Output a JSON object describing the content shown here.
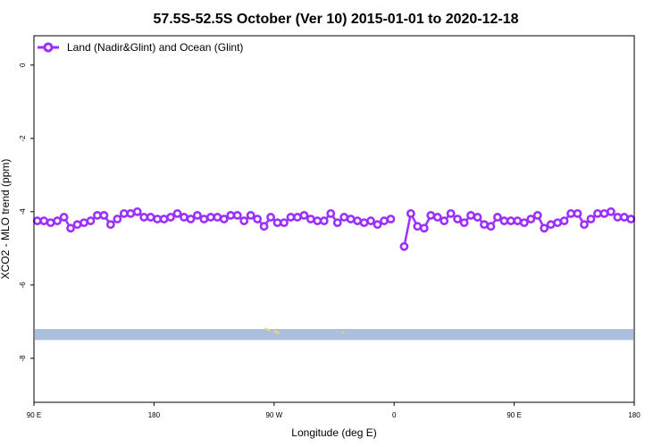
{
  "chart_data": {
    "type": "line",
    "title": "57.5S-52.5S October (Ver 10)   2015-01-01 to 2020-12-18",
    "xlabel": "Longitude (deg E)",
    "ylabel": "XCO2 - MLO trend (ppm)",
    "xlim": [
      90,
      450
    ],
    "ylim": [
      -9.2,
      0.8
    ],
    "x_ticks": [
      {
        "value": 90,
        "label": "90 E"
      },
      {
        "value": 180,
        "label": "180"
      },
      {
        "value": 270,
        "label": "90 W"
      },
      {
        "value": 360,
        "label": "0"
      },
      {
        "value": 450,
        "label": "90 E"
      },
      {
        "value": 540,
        "label": "180"
      }
    ],
    "y_ticks": [
      {
        "value": 0,
        "label": "0"
      },
      {
        "value": -2,
        "label": "-2"
      },
      {
        "value": -4,
        "label": "-4"
      },
      {
        "value": -6,
        "label": "-6"
      },
      {
        "value": -8,
        "label": "-8"
      }
    ],
    "x_axis_range_plotted": [
      90,
      540
    ],
    "grid": false,
    "legend_position": "top-left",
    "series": [
      {
        "name": "Land (Nadir&Glint) and Ocean (Glint)",
        "color": "#9b30ff",
        "segments": [
          {
            "x": [
              92.5,
              97.5,
              102.5,
              107.5,
              112.5,
              117.5,
              122.5,
              127.5,
              132.5,
              137.5,
              142.5,
              147.5,
              152.5,
              157.5,
              162.5,
              167.5,
              172.5,
              177.5,
              182.5,
              187.5,
              192.5,
              197.5,
              202.5,
              207.5,
              212.5,
              217.5,
              222.5,
              227.5,
              232.5,
              237.5,
              242.5,
              247.5,
              252.5,
              257.5,
              262.5,
              267.5,
              272.5,
              277.5,
              282.5,
              287.5,
              292.5,
              297.5,
              302.5,
              307.5,
              312.5,
              317.5,
              322.5,
              327.5,
              332.5,
              337.5,
              342.5,
              347.5,
              352.5,
              357.5
            ],
            "y": [
              -4.25,
              -4.25,
              -4.3,
              -4.25,
              -4.15,
              -4.45,
              -4.35,
              -4.3,
              -4.25,
              -4.1,
              -4.1,
              -4.35,
              -4.2,
              -4.05,
              -4.05,
              -4.0,
              -4.15,
              -4.15,
              -4.2,
              -4.2,
              -4.15,
              -4.05,
              -4.15,
              -4.2,
              -4.1,
              -4.2,
              -4.15,
              -4.15,
              -4.2,
              -4.1,
              -4.1,
              -4.25,
              -4.1,
              -4.2,
              -4.4,
              -4.15,
              -4.3,
              -4.3,
              -4.15,
              -4.15,
              -4.1,
              -4.2,
              -4.25,
              -4.25,
              -4.05,
              -4.3,
              -4.15,
              -4.2,
              -4.25,
              -4.3,
              -4.25,
              -4.35,
              -4.25,
              -4.2
            ]
          },
          {
            "x": [
              367.5,
              372.5,
              377.5,
              382.5,
              387.5,
              392.5,
              397.5,
              402.5,
              407.5,
              412.5,
              417.5,
              422.5,
              427.5,
              432.5,
              437.5,
              442.5,
              447.5,
              452.5,
              457.5,
              462.5,
              467.5,
              472.5,
              477.5,
              482.5,
              487.5,
              492.5,
              497.5,
              502.5,
              507.5,
              512.5,
              517.5,
              522.5,
              527.5,
              532.5,
              537.5
            ],
            "y": [
              -4.95,
              -4.05,
              -4.4,
              -4.45,
              -4.1,
              -4.15,
              -4.25,
              -4.05,
              -4.2,
              -4.3,
              -4.1,
              -4.15,
              -4.35,
              -4.4,
              -4.15,
              -4.25,
              -4.25,
              -4.25,
              -4.3,
              -4.2,
              -4.1,
              -4.45,
              -4.35,
              -4.3,
              -4.25,
              -4.05,
              -4.05,
              -4.35,
              -4.2,
              -4.05,
              -4.05,
              -4.0,
              -4.15,
              -4.15,
              -4.2
            ]
          }
        ]
      }
    ],
    "map_strip": {
      "y_range": [
        -7.5,
        -7.2
      ],
      "ocean_color": "#a9bfdd",
      "land_color": "#f5d76e",
      "land_marks": [
        {
          "x": [
            263,
            267
          ],
          "y": [
            -7.18,
            -7.24
          ]
        },
        {
          "x": [
            270,
            274
          ],
          "y": [
            -7.25,
            -7.32
          ]
        },
        {
          "x": [
            321,
            322
          ],
          "y": [
            -7.28,
            -7.31
          ]
        }
      ]
    },
    "plot_background": "#ffffff"
  }
}
